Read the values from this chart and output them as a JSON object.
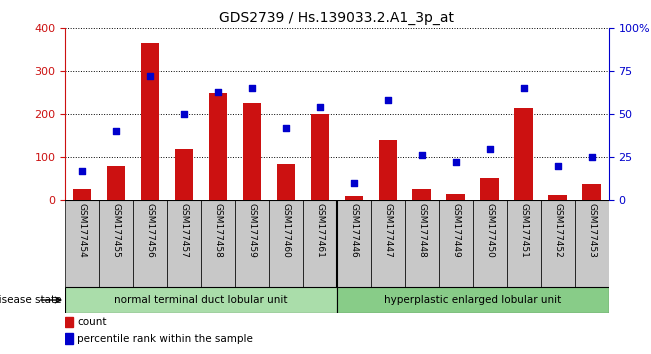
{
  "title": "GDS2739 / Hs.139033.2.A1_3p_at",
  "samples": [
    "GSM177454",
    "GSM177455",
    "GSM177456",
    "GSM177457",
    "GSM177458",
    "GSM177459",
    "GSM177460",
    "GSM177461",
    "GSM177446",
    "GSM177447",
    "GSM177448",
    "GSM177449",
    "GSM177450",
    "GSM177451",
    "GSM177452",
    "GSM177453"
  ],
  "counts": [
    25,
    80,
    365,
    120,
    250,
    225,
    85,
    200,
    10,
    140,
    25,
    15,
    52,
    215,
    12,
    38
  ],
  "percentiles": [
    17,
    40,
    72,
    50,
    63,
    65,
    42,
    54,
    10,
    58,
    26,
    22,
    30,
    65,
    20,
    25
  ],
  "group1_label": "normal terminal duct lobular unit",
  "group2_label": "hyperplastic enlarged lobular unit",
  "group1_count": 8,
  "group2_count": 8,
  "ylim_left": [
    0,
    400
  ],
  "ylim_right": [
    0,
    100
  ],
  "yticks_left": [
    0,
    100,
    200,
    300,
    400
  ],
  "yticks_right": [
    0,
    25,
    50,
    75,
    100
  ],
  "bar_color": "#cc1111",
  "scatter_color": "#0000cc",
  "group1_color": "#aaddaa",
  "group2_color": "#88cc88",
  "bg_color": "#ffffff",
  "label_count": "count",
  "label_percentile": "percentile rank within the sample",
  "disease_state_label": "disease state",
  "title_fontsize": 10,
  "sample_box_color": "#c8c8c8"
}
